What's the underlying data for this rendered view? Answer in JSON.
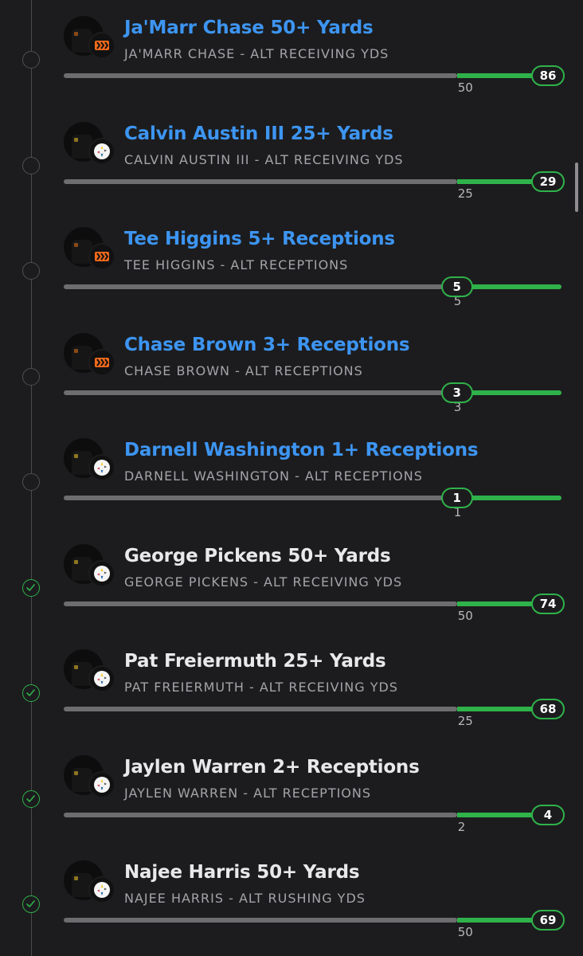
{
  "legs": [
    {
      "title": "Ja'Marr Chase 50+ Yards",
      "subtitle": "JA'MARR CHASE - ALT RECEIVING YDS",
      "team_icon": "bengals-logo-icon",
      "status": "pending",
      "title_color": "#3d95f2",
      "target_label": "50",
      "result_label": "86",
      "target_fraction": 0.79,
      "result_fraction": 0.95
    },
    {
      "title": "Calvin Austin III 25+ Yards",
      "subtitle": "CALVIN AUSTIN III - ALT RECEIVING YDS",
      "team_icon": "steelers-logo-icon",
      "status": "pending",
      "title_color": "#3d95f2",
      "target_label": "25",
      "result_label": "29",
      "target_fraction": 0.79,
      "result_fraction": 0.95
    },
    {
      "title": "Tee Higgins 5+ Receptions",
      "subtitle": "TEE HIGGINS - ALT RECEPTIONS",
      "team_icon": "bengals-logo-icon",
      "status": "pending",
      "title_color": "#3d95f2",
      "target_label": "5",
      "result_label": "5",
      "target_fraction": 0.79,
      "result_fraction": 0.79
    },
    {
      "title": "Chase Brown 3+ Receptions",
      "subtitle": "CHASE BROWN - ALT RECEPTIONS",
      "team_icon": "bengals-logo-icon",
      "status": "pending",
      "title_color": "#3d95f2",
      "target_label": "3",
      "result_label": "3",
      "target_fraction": 0.79,
      "result_fraction": 0.79
    },
    {
      "title": "Darnell Washington 1+ Receptions",
      "subtitle": "DARNELL WASHINGTON - ALT RECEPTIONS",
      "team_icon": "steelers-logo-icon",
      "status": "pending",
      "title_color": "#3d95f2",
      "target_label": "1",
      "result_label": "1",
      "target_fraction": 0.79,
      "result_fraction": 0.79
    },
    {
      "title": "George Pickens 50+ Yards",
      "subtitle": "GEORGE PICKENS - ALT RECEIVING YDS",
      "team_icon": "steelers-logo-icon",
      "status": "won",
      "title_color": "#e9e9eb",
      "target_label": "50",
      "result_label": "74",
      "target_fraction": 0.79,
      "result_fraction": 0.95
    },
    {
      "title": "Pat Freiermuth 25+ Yards",
      "subtitle": "PAT FREIERMUTH - ALT RECEIVING YDS",
      "team_icon": "steelers-logo-icon",
      "status": "won",
      "title_color": "#e9e9eb",
      "target_label": "25",
      "result_label": "68",
      "target_fraction": 0.79,
      "result_fraction": 0.95
    },
    {
      "title": "Jaylen Warren 2+ Receptions",
      "subtitle": "JAYLEN WARREN - ALT RECEPTIONS",
      "team_icon": "steelers-logo-icon",
      "status": "won",
      "title_color": "#e9e9eb",
      "target_label": "2",
      "result_label": "4",
      "target_fraction": 0.79,
      "result_fraction": 0.95
    },
    {
      "title": "Najee Harris 50+ Yards",
      "subtitle": "NAJEE HARRIS - ALT RUSHING YDS",
      "team_icon": "steelers-logo-icon",
      "status": "won",
      "title_color": "#e9e9eb",
      "target_label": "50",
      "result_label": "69",
      "target_fraction": 0.79,
      "result_fraction": 0.95
    }
  ]
}
